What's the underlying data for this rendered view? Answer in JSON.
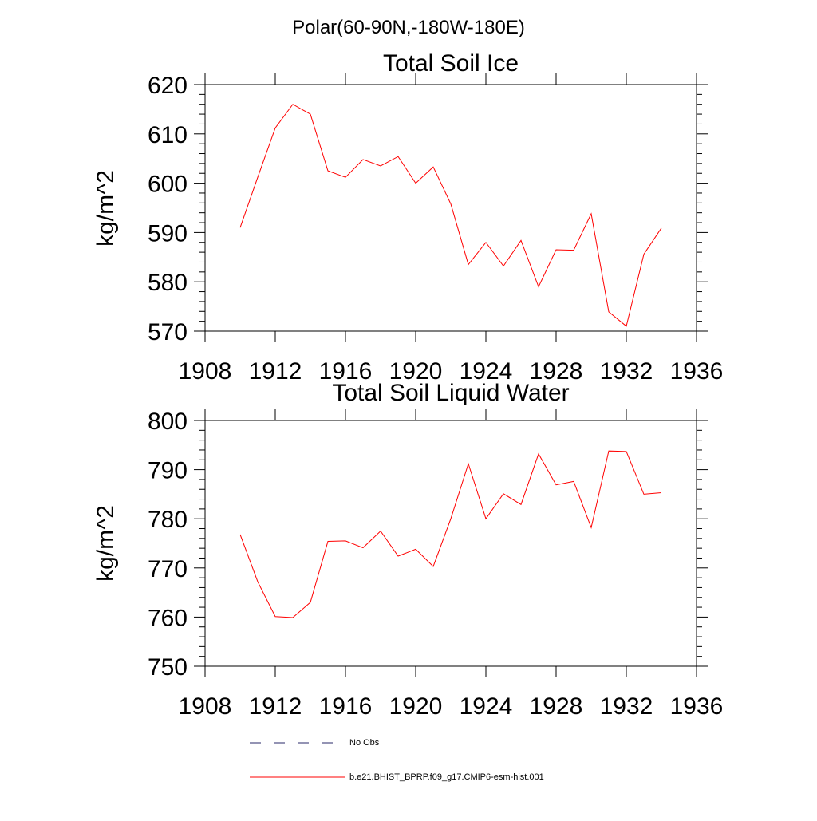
{
  "figure": {
    "suptitle": "Polar(60-90N,-180W-180E)"
  },
  "chart_data": [
    {
      "type": "line",
      "title": "Total Soil Ice",
      "xlabel": "",
      "ylabel": "kg/m^2",
      "xlim": [
        1908,
        1936
      ],
      "ylim": [
        570,
        620
      ],
      "xticks": [
        1908,
        1912,
        1916,
        1920,
        1924,
        1928,
        1932,
        1936
      ],
      "yticks": [
        570,
        580,
        590,
        600,
        610,
        620
      ],
      "x": [
        1910,
        1911,
        1912,
        1913,
        1914,
        1915,
        1916,
        1917,
        1918,
        1919,
        1920,
        1921,
        1922,
        1923,
        1924,
        1925,
        1926,
        1927,
        1928,
        1929,
        1930,
        1931,
        1932,
        1933,
        1934
      ],
      "series": [
        {
          "color": "#ff0000",
          "values": [
            591.0,
            601.2,
            611.2,
            616.0,
            614.0,
            602.5,
            601.2,
            604.8,
            603.5,
            605.4,
            600.0,
            603.3,
            595.8,
            583.5,
            588.0,
            583.2,
            588.4,
            579.0,
            586.5,
            586.4,
            593.8,
            573.9,
            571.0,
            585.6,
            590.9
          ]
        }
      ]
    },
    {
      "type": "line",
      "title": "Total Soil Liquid Water",
      "xlabel": "",
      "ylabel": "kg/m^2",
      "xlim": [
        1908,
        1936
      ],
      "ylim": [
        750,
        800
      ],
      "xticks": [
        1908,
        1912,
        1916,
        1920,
        1924,
        1928,
        1932,
        1936
      ],
      "yticks": [
        750,
        760,
        770,
        780,
        790,
        800
      ],
      "x": [
        1910,
        1911,
        1912,
        1913,
        1914,
        1915,
        1916,
        1917,
        1918,
        1919,
        1920,
        1921,
        1922,
        1923,
        1924,
        1925,
        1926,
        1927,
        1928,
        1929,
        1930,
        1931,
        1932,
        1933,
        1934
      ],
      "series": [
        {
          "color": "#ff0000",
          "values": [
            776.8,
            767.2,
            760.1,
            759.9,
            763.0,
            775.4,
            775.5,
            774.1,
            777.5,
            772.4,
            773.8,
            770.3,
            780.0,
            791.2,
            780.0,
            785.1,
            782.9,
            793.2,
            786.9,
            787.6,
            778.2,
            793.8,
            793.7,
            785.0,
            785.3
          ]
        }
      ]
    }
  ],
  "legend": {
    "items": [
      {
        "label": "No Obs",
        "style": "dashed",
        "color": "#2a2a6a"
      },
      {
        "label": "b.e21.BHIST_BPRP.f09_g17.CMIP6-esm-hist.001",
        "style": "solid",
        "color": "#ff0000"
      }
    ]
  }
}
